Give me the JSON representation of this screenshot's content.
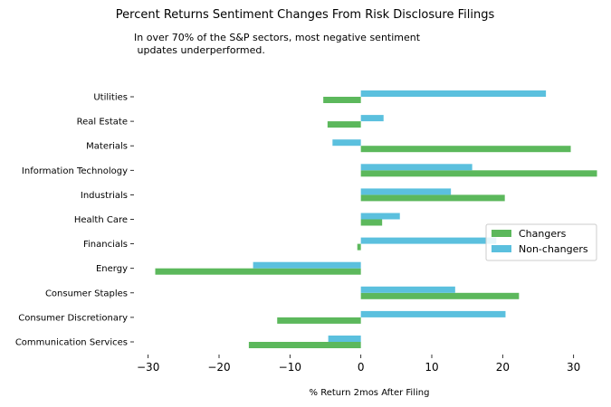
{
  "chart_data": {
    "type": "bar",
    "orientation": "horizontal",
    "title": "Percent Returns Sentiment Changes From Risk Disclosure Filings",
    "subtitle_lines": [
      "In over 70% of the S&P sectors, most negative sentiment",
      " updates underperformed."
    ],
    "xlabel": "% Return 2mos After Filing",
    "ylabel": "",
    "xlim": [
      -32,
      34
    ],
    "xticks": [
      -30,
      -20,
      -10,
      0,
      10,
      20,
      30
    ],
    "xtick_labels": [
      "−30",
      "−20",
      "−10",
      "0",
      "10",
      "20",
      "30"
    ],
    "grid": false,
    "legend_position": "center-right",
    "categories": [
      "Communication Services",
      "Consumer Discretionary",
      "Consumer Staples",
      "Energy",
      "Financials",
      "Health Care",
      "Industrials",
      "Information Technology",
      "Materials",
      "Real Estate",
      "Utilities"
    ],
    "series": [
      {
        "name": "Changers",
        "color": "#5cb85c",
        "values": [
          -15.8,
          -11.8,
          22.3,
          -29.0,
          -0.5,
          3.0,
          20.3,
          33.3,
          29.6,
          -4.7,
          -5.3
        ]
      },
      {
        "name": "Non-changers",
        "color": "#5bc0de",
        "values": [
          -4.6,
          20.4,
          13.3,
          -15.2,
          19.1,
          5.5,
          12.7,
          15.7,
          -4.0,
          3.2,
          26.1
        ]
      }
    ]
  }
}
